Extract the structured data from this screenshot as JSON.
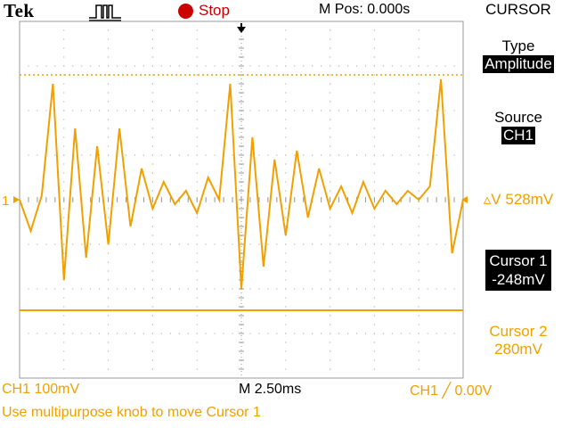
{
  "header": {
    "brand": "Tek",
    "acq_state": "Stop",
    "m_pos": "M Pos: 0.000s",
    "menu_title": "CURSOR"
  },
  "menu": {
    "type_label": "Type",
    "type_value": "Amplitude",
    "source_label": "Source",
    "source_value": "CH1",
    "delta_v": "▵V 528mV",
    "cursor1_label": "Cursor 1",
    "cursor1_value": "-248mV",
    "cursor2_label": "Cursor 2",
    "cursor2_value": "280mV"
  },
  "footer": {
    "ch1_scale": "CH1  100mV",
    "timebase": "M 2.50ms",
    "trigger": "CH1 ╱ 0.00V",
    "hint": "Use multipurpose knob to move Cursor 1"
  },
  "channel_marker": "1",
  "colors": {
    "trace": "#f2a000",
    "grid": "#999999",
    "stop": "#cc0000",
    "background": "#ffffff"
  },
  "chart_data": {
    "type": "line",
    "series": [
      {
        "name": "CH1",
        "x": [
          0,
          0.25,
          0.5,
          0.75,
          1.0,
          1.25,
          1.5,
          1.75,
          2.0,
          2.25,
          2.5,
          2.75,
          3.0,
          3.25,
          3.5,
          3.75,
          4.0,
          4.25,
          4.5,
          4.75,
          5.0,
          5.25,
          5.5,
          5.75,
          6.0,
          6.25,
          6.5,
          6.75,
          7.0,
          7.25,
          7.5,
          7.75,
          8.0,
          8.25,
          8.5,
          8.75,
          9.0,
          9.25,
          9.5,
          9.75,
          10.0
        ],
        "y": [
          0.0,
          -0.7,
          0.1,
          2.6,
          -1.8,
          1.6,
          -1.3,
          1.2,
          -1.0,
          1.6,
          -0.6,
          0.7,
          -0.2,
          0.4,
          -0.1,
          0.2,
          -0.3,
          0.5,
          0.0,
          2.6,
          -2.0,
          1.4,
          -1.5,
          0.9,
          -0.8,
          1.1,
          -0.4,
          0.7,
          -0.2,
          0.3,
          -0.3,
          0.4,
          -0.2,
          0.2,
          -0.1,
          0.2,
          0.0,
          0.3,
          2.7,
          -1.2,
          0.0
        ]
      }
    ],
    "cursors": [
      {
        "name": "Cursor 1",
        "value_mV": -248
      },
      {
        "name": "Cursor 2",
        "value_mV": 280
      }
    ],
    "xlim": [
      0,
      10
    ],
    "ylim": [
      -4,
      4
    ],
    "x_divisions": 10,
    "y_divisions": 8,
    "volts_per_div_mV": 100,
    "time_per_div_ms": 2.5,
    "grid": true
  }
}
